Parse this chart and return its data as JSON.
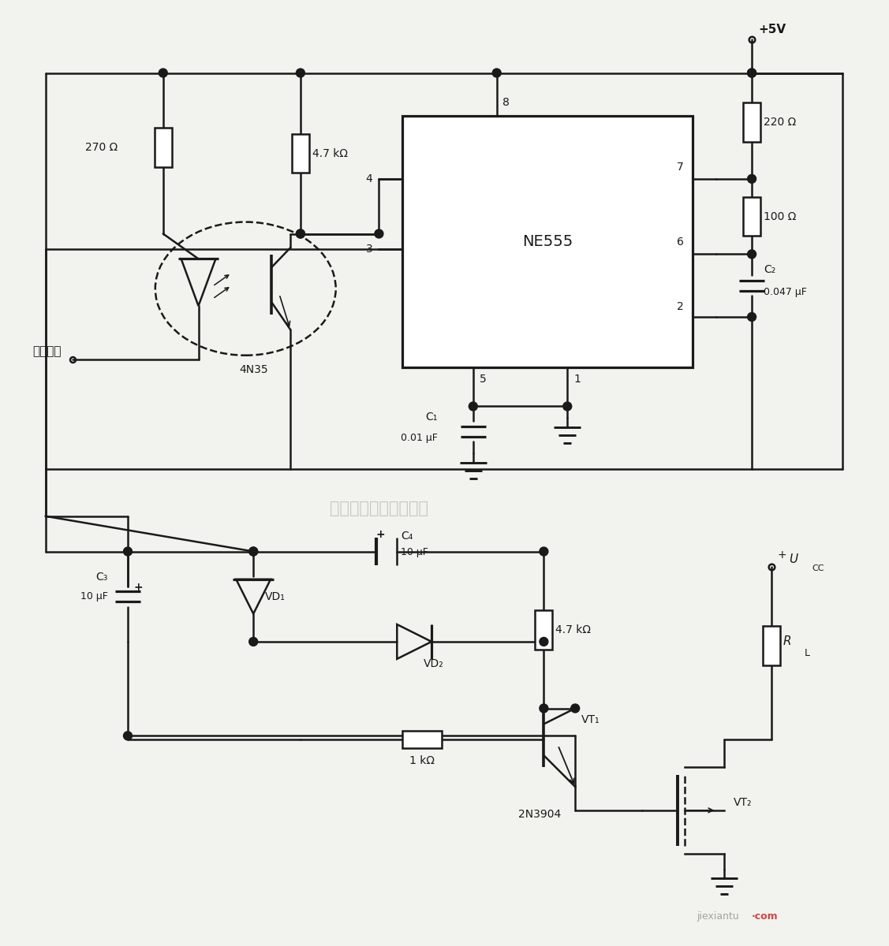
{
  "bg_color": "#f2f2ee",
  "line_color": "#1a1a1a",
  "lw": 1.8,
  "label_5v": "+5V",
  "label_ctrl": "控制信号",
  "label_270": "270 Ω",
  "label_47k_top": "4.7 kΩ",
  "label_220": "220 Ω",
  "label_100": "100 Ω",
  "label_c2": "C₂",
  "label_c2_val": "0.047 μF",
  "label_c1": "C₁",
  "label_c1_val": "0.01 μF",
  "label_ne555": "NE555",
  "label_4n35": "4N35",
  "label_c3": "C₃",
  "label_c3_val": "10 μF",
  "label_c4": "C₄",
  "label_c4_val": "10 μF",
  "label_vd1": "VD₁",
  "label_vd2": "VD₂",
  "label_47k_bot": "4.7 kΩ",
  "label_1k": "1 kΩ",
  "label_rl": "R",
  "label_rl_sub": "L",
  "label_vt1": "VT₁",
  "label_vt2": "VT₂",
  "label_2n3904": "2N3904",
  "watermark": "杭州将睽科技有限公司"
}
